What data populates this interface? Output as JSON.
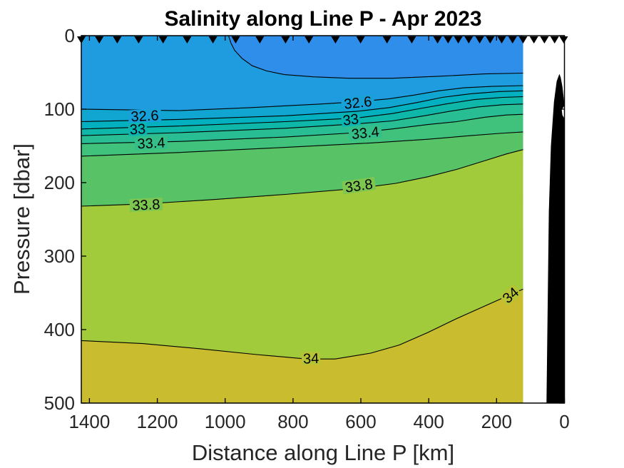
{
  "title": "Salinity along Line P - Apr 2023",
  "axes": {
    "x": {
      "label": "Distance along Line P [km]",
      "ticks": [
        1400,
        1200,
        1000,
        800,
        600,
        400,
        200,
        0
      ],
      "min": 0,
      "max": 1424,
      "reversed": true
    },
    "y": {
      "label": "Pressure [dbar]",
      "ticks": [
        0,
        100,
        200,
        300,
        400,
        500
      ],
      "min": 0,
      "max": 500,
      "reversed": true
    }
  },
  "chart_data": {
    "type": "heatmap",
    "subtype": "filled-contour-section",
    "variable": "Salinity",
    "x_units": "km",
    "y_units": "dbar",
    "data_x_extent_km": [
      1424,
      122
    ],
    "levels": [
      32.4,
      32.6,
      32.8,
      33.0,
      33.2,
      33.4,
      33.6,
      33.8,
      34.0
    ],
    "labeled_levels": [
      32.6,
      33,
      33.4,
      33.8,
      34
    ],
    "line_color": "#000000",
    "bands": [
      {
        "range": "<32.4",
        "color": "#2E8EEA"
      },
      {
        "range": "32.4-32.6",
        "color": "#1F9BDF"
      },
      {
        "range": "32.6-32.8",
        "color": "#10A6D1"
      },
      {
        "range": "32.8-33.0",
        "color": "#02B0BF"
      },
      {
        "range": "33.0-33.2",
        "color": "#0EB7A8"
      },
      {
        "range": "33.2-33.4",
        "color": "#28BD93"
      },
      {
        "range": "33.4-33.6",
        "color": "#40C17C"
      },
      {
        "range": "33.6-33.8",
        "color": "#58C366"
      },
      {
        "range": "33.8-34.0",
        "color": "#A2CB3B"
      },
      {
        "range": ">34.0",
        "color": "#C9BC2F"
      }
    ],
    "contours": [
      {
        "level": 32.4,
        "outcrops_at_surface": true,
        "points": [
          [
            990,
            0
          ],
          [
            983,
            10
          ],
          [
            972,
            20
          ],
          [
            950,
            31
          ],
          [
            920,
            41
          ],
          [
            878,
            48
          ],
          [
            825,
            53
          ],
          [
            740,
            56
          ],
          [
            635,
            58
          ],
          [
            508,
            58
          ],
          [
            360,
            55
          ],
          [
            235,
            52
          ],
          [
            122,
            51
          ]
        ]
      },
      {
        "level": 32.6,
        "points": [
          [
            1424,
            100
          ],
          [
            1138,
            102
          ],
          [
            928,
            98
          ],
          [
            718,
            93
          ],
          [
            613,
            90
          ],
          [
            518,
            86
          ],
          [
            445,
            81
          ],
          [
            371,
            75
          ],
          [
            297,
            71
          ],
          [
            213,
            69
          ],
          [
            122,
            68
          ]
        ]
      },
      {
        "level": 32.8,
        "points": [
          [
            1424,
            117
          ],
          [
            1138,
            114
          ],
          [
            823,
            109
          ],
          [
            613,
            103
          ],
          [
            518,
            98
          ],
          [
            434,
            91
          ],
          [
            360,
            84
          ],
          [
            276,
            79
          ],
          [
            192,
            76
          ],
          [
            122,
            75
          ]
        ]
      },
      {
        "level": 33.0,
        "points": [
          [
            1424,
            127
          ],
          [
            1138,
            123
          ],
          [
            823,
            117
          ],
          [
            613,
            112
          ],
          [
            508,
            106
          ],
          [
            424,
            99
          ],
          [
            350,
            93
          ],
          [
            266,
            87
          ],
          [
            182,
            84
          ],
          [
            122,
            83
          ]
        ]
      },
      {
        "level": 33.2,
        "points": [
          [
            1424,
            136
          ],
          [
            1138,
            132
          ],
          [
            823,
            126
          ],
          [
            613,
            120
          ],
          [
            508,
            116
          ],
          [
            413,
            109
          ],
          [
            339,
            103
          ],
          [
            255,
            97
          ],
          [
            182,
            94
          ],
          [
            122,
            93
          ]
        ]
      },
      {
        "level": 33.4,
        "points": [
          [
            1424,
            147
          ],
          [
            1138,
            144
          ],
          [
            823,
            138
          ],
          [
            613,
            132
          ],
          [
            508,
            127
          ],
          [
            403,
            121
          ],
          [
            318,
            117
          ],
          [
            234,
            111
          ],
          [
            171,
            108
          ],
          [
            122,
            107
          ]
        ]
      },
      {
        "level": 33.6,
        "points": [
          [
            1424,
            164
          ],
          [
            1138,
            159
          ],
          [
            823,
            152
          ],
          [
            571,
            146
          ],
          [
            403,
            141
          ],
          [
            276,
            136
          ],
          [
            192,
            133
          ],
          [
            122,
            131
          ]
        ]
      },
      {
        "level": 33.8,
        "points": [
          [
            1424,
            232
          ],
          [
            1243,
            229
          ],
          [
            1033,
            223
          ],
          [
            823,
            216
          ],
          [
            613,
            208
          ],
          [
            497,
            201
          ],
          [
            403,
            192
          ],
          [
            318,
            182
          ],
          [
            234,
            170
          ],
          [
            171,
            161
          ],
          [
            122,
            155
          ]
        ]
      },
      {
        "level": 34.0,
        "points": [
          [
            1424,
            415
          ],
          [
            1243,
            419
          ],
          [
            1075,
            426
          ],
          [
            907,
            434
          ],
          [
            760,
            440
          ],
          [
            676,
            440
          ],
          [
            571,
            432
          ],
          [
            487,
            421
          ],
          [
            403,
            404
          ],
          [
            318,
            385
          ],
          [
            245,
            370
          ],
          [
            182,
            357
          ],
          [
            122,
            345
          ]
        ]
      }
    ],
    "contour_labels": [
      {
        "text": "32.6",
        "km": 1237,
        "dbar": 109,
        "rot": -3,
        "bg": "#18A1D8"
      },
      {
        "text": "33",
        "km": 1258,
        "dbar": 127,
        "rot": -3,
        "bg": "#08B4B4"
      },
      {
        "text": "33.4",
        "km": 1218,
        "dbar": 146,
        "rot": -3,
        "bg": "#34BF88"
      },
      {
        "text": "32.6",
        "km": 609,
        "dbar": 91,
        "rot": -6,
        "bg": "#18A1D8"
      },
      {
        "text": "33",
        "km": 630,
        "dbar": 114,
        "rot": -7,
        "bg": "#08B4B4"
      },
      {
        "text": "33.4",
        "km": 587,
        "dbar": 132,
        "rot": -6,
        "bg": "#34BF88"
      },
      {
        "text": "33.8",
        "km": 1233,
        "dbar": 230,
        "rot": -3,
        "bg": "#7DC750"
      },
      {
        "text": "33.8",
        "km": 606,
        "dbar": 204,
        "rot": -8,
        "bg": "#7DC750"
      },
      {
        "text": "34",
        "km": 747,
        "dbar": 439,
        "rot": -2,
        "bg": "#B6C335"
      },
      {
        "text": "34",
        "km": 159,
        "dbar": 353,
        "rot": -40,
        "bg": "#B6C335"
      }
    ],
    "stations_km": [
      1424,
      1371,
      1318,
      1255,
      1183,
      1112,
      1036,
      969,
      898,
      822,
      753,
      675,
      601,
      523,
      450,
      374,
      343,
      313,
      282,
      250,
      219,
      185,
      153,
      122,
      90,
      59,
      29,
      2
    ],
    "bathymetry_km_dbar": [
      [
        53,
        500
      ],
      [
        46,
        240
      ],
      [
        40,
        150
      ],
      [
        31,
        90
      ],
      [
        23,
        62
      ],
      [
        15,
        52
      ],
      [
        11,
        57
      ],
      [
        6,
        69
      ],
      [
        2,
        85
      ],
      [
        0,
        95
      ],
      [
        8,
        101
      ],
      [
        6,
        108
      ],
      [
        0,
        113
      ],
      [
        0,
        500
      ]
    ],
    "bathymetry_color": "#000000",
    "marker_color": "#000000"
  }
}
